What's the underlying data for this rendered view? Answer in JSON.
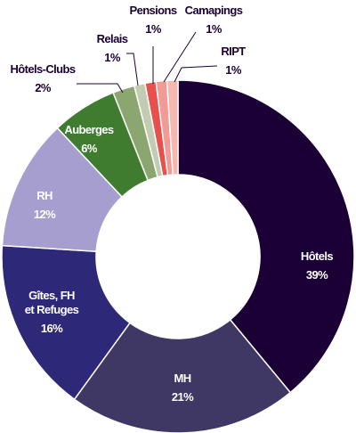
{
  "chart_data": {
    "type": "donut",
    "categories": [
      "Hôtels",
      "MH",
      "Gîtes, FH et Refuges",
      "RH",
      "Auberges",
      "Hôtels-Clubs",
      "Relais",
      "Pensions",
      "Camapings",
      "RIPT"
    ],
    "values": [
      39,
      21,
      16,
      12,
      6,
      2,
      1,
      1,
      1,
      1
    ],
    "value_labels": [
      "39%",
      "21%",
      "16%",
      "12%",
      "6%",
      "2%",
      "1%",
      "1%",
      "1%",
      "1%"
    ],
    "colors": [
      "#1b0036",
      "#3f3764",
      "#2e2878",
      "#a59ecf",
      "#3f7c2f",
      "#8ba66f",
      "#c3ccb2",
      "#e8504e",
      "#f29b96",
      "#f6b8ae"
    ]
  }
}
